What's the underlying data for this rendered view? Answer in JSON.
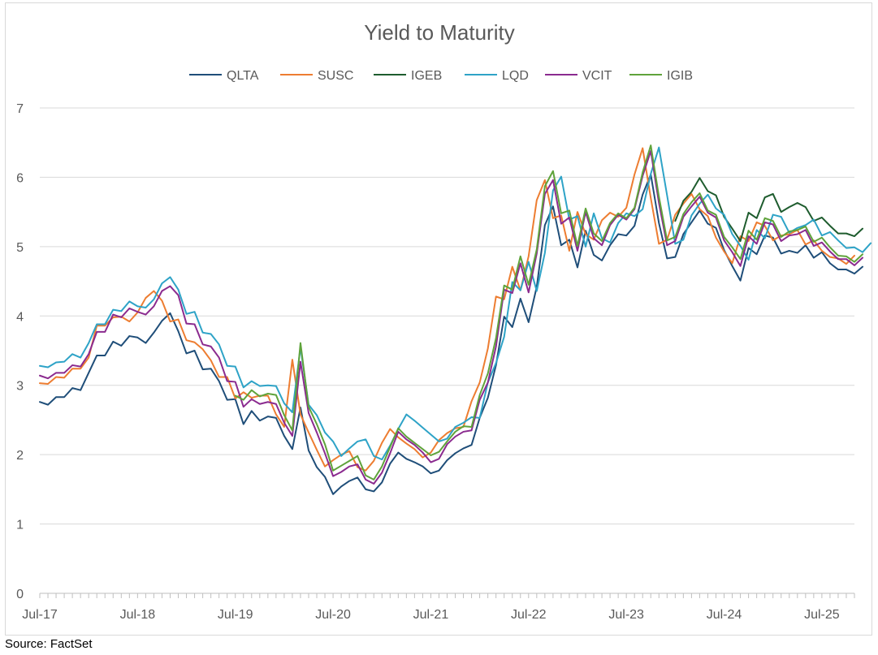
{
  "source": "Source: FactSet",
  "chart_data": {
    "type": "line",
    "title": "Yield to Maturity",
    "xlabel": "",
    "ylabel": "",
    "ylim": [
      0,
      7
    ],
    "yticks": [
      0,
      1,
      2,
      3,
      4,
      5,
      6,
      7
    ],
    "x_start": "Jul-17",
    "x_end": "Nov-25",
    "xticks": [
      "Jul-17",
      "Jul-18",
      "Jul-19",
      "Jul-20",
      "Jul-21",
      "Jul-22",
      "Jul-23",
      "Jul-24",
      "Jul-25"
    ],
    "grid": "horizontal",
    "legend": "top",
    "series": [
      {
        "name": "QLTA",
        "color": "#1f4e79",
        "start": "Jul-17",
        "values": [
          2.76,
          2.72,
          2.83,
          2.83,
          2.96,
          2.93,
          3.18,
          3.43,
          3.43,
          3.63,
          3.57,
          3.71,
          3.69,
          3.61,
          3.76,
          3.93,
          4.04,
          3.78,
          3.46,
          3.5,
          3.23,
          3.24,
          3.06,
          2.79,
          2.8,
          2.44,
          2.63,
          2.49,
          2.55,
          2.53,
          2.27,
          2.08,
          2.68,
          2.06,
          1.82,
          1.68,
          1.43,
          1.54,
          1.62,
          1.67,
          1.5,
          1.47,
          1.6,
          1.87,
          2.03,
          1.94,
          1.89,
          1.83,
          1.73,
          1.77,
          1.92,
          2.02,
          2.09,
          2.14,
          2.53,
          2.82,
          3.29,
          3.99,
          3.84,
          4.25,
          3.91,
          4.42,
          5.31,
          5.58,
          5.02,
          5.1,
          4.7,
          5.23,
          4.88,
          4.8,
          5.02,
          5.18,
          5.16,
          5.3,
          5.75,
          6.04,
          5.34,
          4.83,
          4.85,
          5.18,
          5.35,
          5.52,
          5.33,
          5.27,
          4.95,
          4.72,
          4.51,
          4.98,
          4.89,
          5.16,
          5.13,
          4.9,
          4.94,
          4.91,
          5.02,
          4.84,
          4.92,
          4.76,
          4.67,
          4.67,
          4.61,
          4.71
        ]
      },
      {
        "name": "SUSC",
        "color": "#ed7d31",
        "start": "Jul-17",
        "values": [
          3.03,
          3.02,
          3.12,
          3.11,
          3.24,
          3.24,
          3.4,
          3.86,
          3.86,
          3.98,
          3.99,
          3.92,
          4.05,
          4.26,
          4.36,
          4.22,
          3.92,
          3.95,
          3.65,
          3.62,
          3.52,
          3.36,
          3.12,
          3.12,
          2.81,
          2.9,
          2.82,
          2.85,
          2.85,
          2.58,
          2.4,
          3.37,
          2.58,
          2.32,
          2.07,
          1.83,
          1.92,
          2.0,
          2.05,
          1.82,
          1.77,
          1.91,
          2.17,
          2.37,
          2.25,
          2.16,
          2.08,
          1.96,
          2.03,
          2.21,
          2.31,
          2.38,
          2.4,
          2.77,
          3.04,
          3.53,
          4.28,
          4.24,
          4.71,
          4.37,
          4.86,
          5.67,
          5.96,
          5.41,
          5.45,
          4.94,
          5.5,
          5.18,
          5.1,
          5.38,
          5.49,
          5.43,
          5.56,
          6.04,
          6.42,
          5.7,
          5.04,
          5.1,
          5.46,
          5.62,
          5.76,
          5.54,
          5.44,
          5.13,
          4.93,
          4.76,
          5.15,
          5.08,
          5.35,
          5.3,
          5.09,
          5.16,
          5.18,
          5.24,
          5.03,
          5.09,
          4.94,
          4.85,
          4.83,
          4.75,
          4.87
        ]
      },
      {
        "name": "IGEB",
        "color": "#1e5c2e",
        "start": "Jan-24",
        "values": [
          5.37,
          5.66,
          5.79,
          5.99,
          5.8,
          5.74,
          5.43,
          5.26,
          5.08,
          5.49,
          5.41,
          5.71,
          5.76,
          5.5,
          5.57,
          5.63,
          5.57,
          5.37,
          5.42,
          5.3,
          5.19,
          5.19,
          5.15,
          5.26
        ]
      },
      {
        "name": "LQD",
        "color": "#2ea3c7",
        "start": "Jul-17",
        "values": [
          3.28,
          3.26,
          3.33,
          3.34,
          3.45,
          3.4,
          3.61,
          3.88,
          3.88,
          4.09,
          4.07,
          4.21,
          4.14,
          4.12,
          4.24,
          4.47,
          4.56,
          4.38,
          4.03,
          4.06,
          3.76,
          3.74,
          3.59,
          3.28,
          3.27,
          2.97,
          3.06,
          2.99,
          3.0,
          2.99,
          2.74,
          2.61,
          3.55,
          2.72,
          2.57,
          2.32,
          2.19,
          1.98,
          2.09,
          2.19,
          2.22,
          1.98,
          1.93,
          2.13,
          2.37,
          2.58,
          2.49,
          2.39,
          2.29,
          2.19,
          2.23,
          2.4,
          2.46,
          2.54,
          2.53,
          3.04,
          3.32,
          3.7,
          4.49,
          4.37,
          4.78,
          4.36,
          4.91,
          5.81,
          6.01,
          5.39,
          5.44,
          5.0,
          5.48,
          5.12,
          5.06,
          5.34,
          5.48,
          5.44,
          5.54,
          6.05,
          6.43,
          5.74,
          5.04,
          5.1,
          5.45,
          5.62,
          5.75,
          5.55,
          5.46,
          5.18,
          5.01,
          4.81,
          5.24,
          5.12,
          5.46,
          5.43,
          5.2,
          5.27,
          5.31,
          5.39,
          5.16,
          5.21,
          5.09,
          4.98,
          4.99,
          4.92,
          5.05
        ]
      },
      {
        "name": "VCIT",
        "color": "#8b2b8f",
        "start": "Jul-17",
        "values": [
          3.14,
          3.1,
          3.18,
          3.18,
          3.29,
          3.27,
          3.45,
          3.77,
          3.77,
          4.02,
          3.98,
          4.11,
          4.06,
          4.02,
          4.14,
          4.36,
          4.43,
          4.3,
          3.89,
          3.88,
          3.59,
          3.56,
          3.4,
          3.06,
          3.05,
          2.69,
          2.8,
          2.73,
          2.76,
          2.73,
          2.46,
          2.27,
          3.34,
          2.6,
          2.32,
          2.02,
          1.69,
          1.75,
          1.83,
          1.86,
          1.64,
          1.58,
          1.74,
          2.02,
          2.33,
          2.22,
          2.14,
          2.03,
          1.89,
          1.94,
          2.15,
          2.26,
          2.33,
          2.35,
          2.79,
          3.04,
          3.56,
          4.38,
          4.33,
          4.76,
          4.34,
          4.9,
          5.76,
          5.96,
          5.33,
          5.42,
          4.94,
          5.5,
          5.12,
          5.02,
          5.31,
          5.46,
          5.39,
          5.54,
          6.02,
          6.38,
          5.63,
          5.02,
          5.08,
          5.43,
          5.58,
          5.72,
          5.49,
          5.42,
          5.09,
          4.92,
          4.72,
          5.15,
          5.04,
          5.35,
          5.32,
          5.08,
          5.16,
          5.18,
          5.24,
          5.01,
          5.06,
          4.93,
          4.82,
          4.82,
          4.73,
          4.84
        ]
      },
      {
        "name": "IGIB",
        "color": "#5fa33b",
        "start": "Jul-17",
        "values": [
          null,
          null,
          null,
          null,
          null,
          null,
          null,
          null,
          null,
          null,
          null,
          null,
          null,
          null,
          null,
          null,
          null,
          null,
          null,
          null,
          null,
          null,
          null,
          null,
          2.85,
          2.79,
          2.93,
          2.84,
          2.88,
          2.86,
          2.57,
          2.35,
          3.61,
          2.69,
          2.44,
          2.15,
          1.77,
          1.84,
          1.91,
          1.98,
          1.7,
          1.64,
          1.83,
          2.11,
          2.38,
          2.26,
          2.17,
          2.08,
          1.99,
          2.04,
          2.19,
          2.33,
          2.41,
          2.4,
          2.86,
          3.17,
          3.68,
          4.44,
          4.38,
          4.86,
          4.45,
          4.96,
          5.87,
          6.09,
          5.48,
          5.52,
          5.01,
          5.55,
          5.19,
          5.08,
          5.34,
          5.48,
          5.41,
          5.56,
          6.07,
          6.46,
          5.72,
          5.09,
          5.14,
          5.47,
          5.64,
          5.77,
          5.52,
          5.46,
          5.14,
          4.99,
          4.82,
          5.23,
          5.1,
          5.41,
          5.37,
          5.14,
          5.22,
          5.24,
          5.29,
          5.07,
          5.13,
          4.99,
          4.87,
          4.86,
          4.78,
          4.89
        ]
      }
    ]
  }
}
